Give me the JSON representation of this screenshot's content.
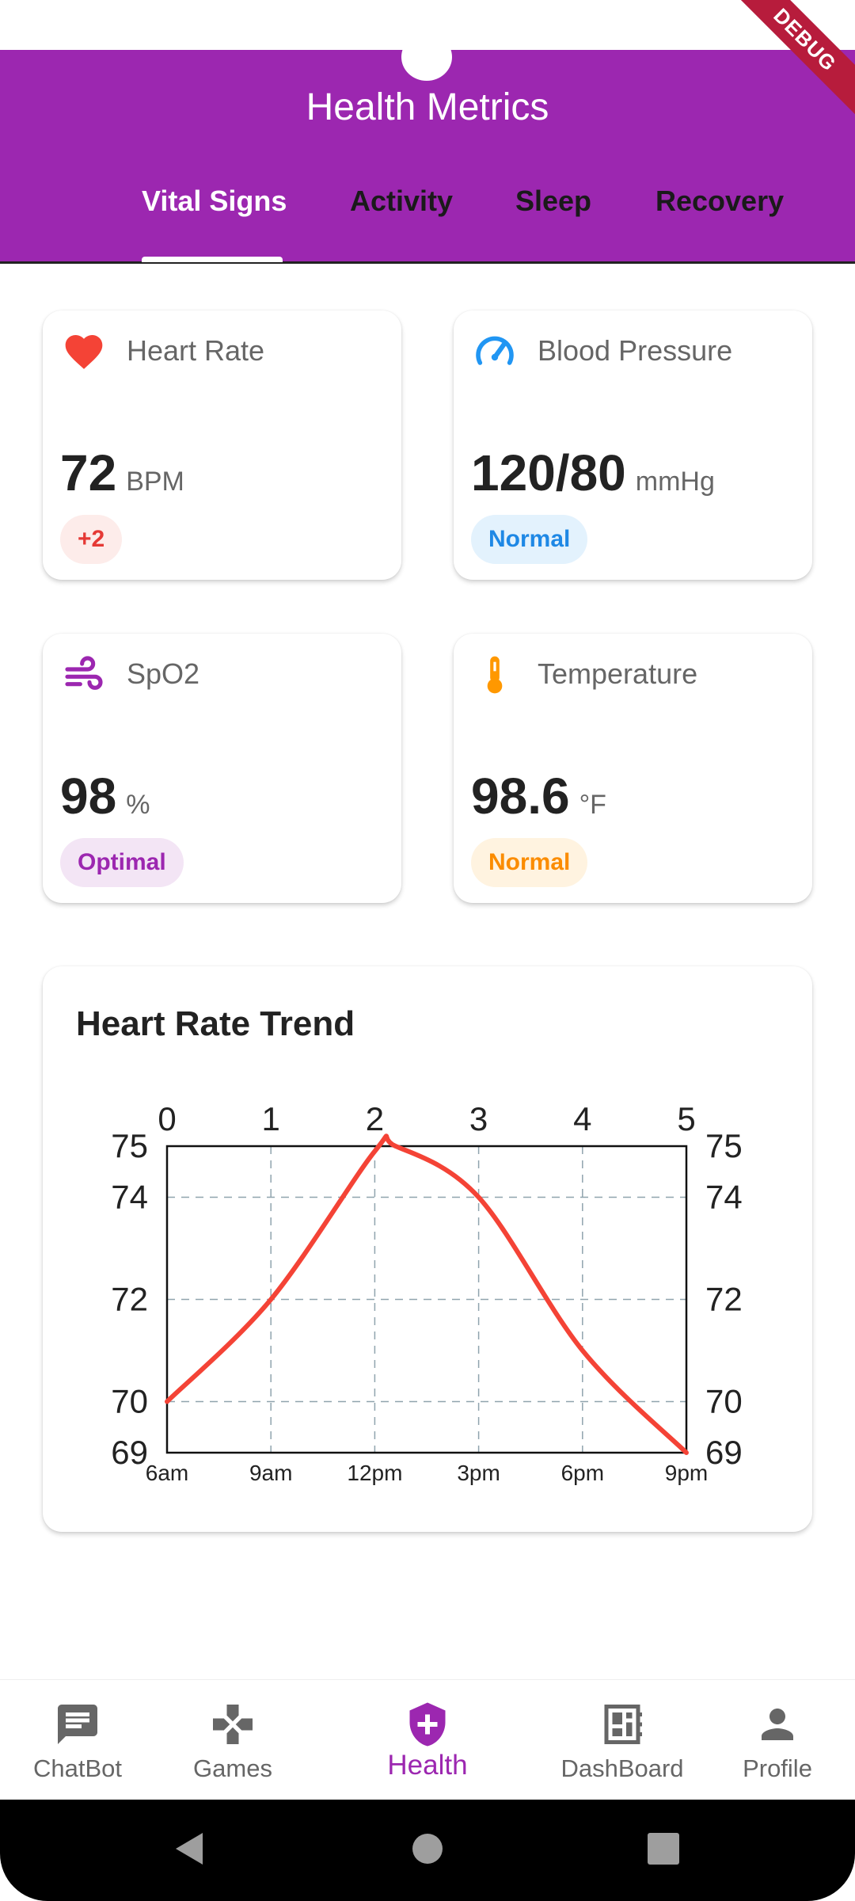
{
  "app_bar": {
    "title": "Health Metrics",
    "debug_label": "DEBUG",
    "color": "#9c27b0"
  },
  "tabs": [
    {
      "label": "Vital Signs",
      "active": true
    },
    {
      "label": "Activity",
      "active": false
    },
    {
      "label": "Sleep",
      "active": false
    },
    {
      "label": "Recovery",
      "active": false
    }
  ],
  "metrics": [
    {
      "label": "Heart Rate",
      "value": "72",
      "unit": "BPM",
      "badge": "+2",
      "icon": "heart-icon",
      "color": "#f44336"
    },
    {
      "label": "Blood Pressure",
      "value": "120/80",
      "unit": "mmHg",
      "badge": "Normal",
      "icon": "speedometer-icon",
      "color": "#2196f3"
    },
    {
      "label": "SpO2",
      "value": "98",
      "unit": "%",
      "badge": "Optimal",
      "icon": "air-icon",
      "color": "#9c27b0"
    },
    {
      "label": "Temperature",
      "value": "98.6",
      "unit": "°F",
      "badge": "Normal",
      "icon": "thermometer-icon",
      "color": "#ff9800"
    }
  ],
  "chart": {
    "title": "Heart Rate Trend"
  },
  "chart_data": {
    "type": "line",
    "title": "Heart Rate Trend",
    "x": [
      0,
      1,
      2,
      2.2,
      3,
      4,
      5
    ],
    "y": [
      70,
      72,
      74.9,
      75,
      74,
      71,
      69
    ],
    "x_top_ticks": [
      "0",
      "1",
      "2",
      "3",
      "4",
      "5"
    ],
    "x_bottom_ticks": [
      "6am",
      "9am",
      "12pm",
      "3pm",
      "6pm",
      "9pm"
    ],
    "y_ticks": [
      "69",
      "70",
      "72",
      "74",
      "75"
    ],
    "xlim": [
      0,
      5
    ],
    "ylim": [
      69,
      75
    ],
    "grid": true,
    "series_color": "#f44336"
  },
  "bottom_nav": [
    {
      "label": "ChatBot",
      "icon": "chat-icon",
      "active": false
    },
    {
      "label": "Games",
      "icon": "gamepad-icon",
      "active": false
    },
    {
      "label": "Health",
      "icon": "health-shield-icon",
      "active": true
    },
    {
      "label": "DashBoard",
      "icon": "dashboard-icon",
      "active": false
    },
    {
      "label": "Profile",
      "icon": "person-icon",
      "active": false
    }
  ]
}
